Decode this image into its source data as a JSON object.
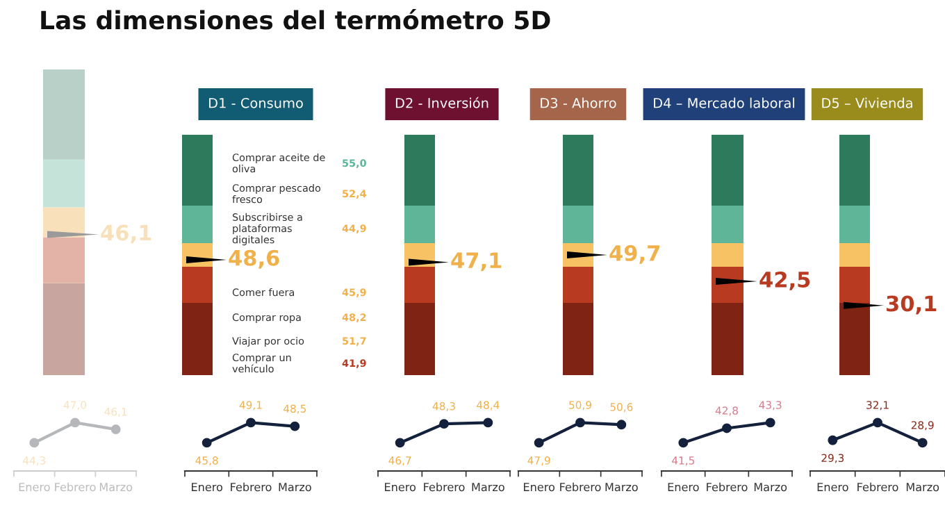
{
  "chart_data": [
    {
      "type": "other",
      "title": "Las dimensiones del termómetro 5D",
      "colors": [
        "#c9a59f",
        "#e3b3a8",
        "#f8e0bb",
        "#c5e3d8",
        "#b9d0c8"
      ],
      "annotations": [
        "46,1"
      ]
    },
    {
      "type": "line",
      "categories": [
        "Enero",
        "Febrero",
        "Marzo"
      ],
      "series": [
        {
          "color": "#b5b7bb",
          "values": [
            44.3,
            47.0,
            46.1
          ],
          "value_labels": [
            "44,3",
            "47,0",
            "46,1"
          ]
        }
      ],
      "marker": "circle"
    },
    {
      "type": "other",
      "title": "D1 - Consumo",
      "color": "#125c73",
      "colors": [
        "#7f2415",
        "#b83a20",
        "#f6c264",
        "#5fb597",
        "#2e7a5d"
      ],
      "annotations": [
        "48,6"
      ]
    },
    {
      "type": "other",
      "colors": [
        "#5fb597",
        "#f0b04a",
        "#f0b04a",
        "#f0b04a",
        "#f0b04a",
        "#f0b04a",
        "#b83a20"
      ],
      "categories": [
        "Comprar aceite de\noliva",
        "Comprar pescado\nfresco",
        "Subscribirse a\nplataformas\ndigitales",
        "Comer fuera",
        "Comprar ropa",
        "Viajar por ocio",
        "Comprar un\nvehículo"
      ],
      "value_labels": [
        "55,0",
        "52,4",
        "44,9",
        "45,9",
        "48,2",
        "51,7",
        "41,9"
      ]
    },
    {
      "type": "line",
      "categories": [
        "Enero",
        "Febrero",
        "Marzo"
      ],
      "series": [
        {
          "color": "#14213d",
          "values": [
            45.8,
            49.1,
            48.5
          ],
          "value_labels": [
            "45,8",
            "49,1",
            "48,5"
          ]
        }
      ],
      "marker": "circle"
    },
    {
      "type": "other",
      "title": "D2 - Inversión",
      "color": "#6e1131",
      "colors": [
        "#7f2415",
        "#b83a20",
        "#f6c264",
        "#5fb597",
        "#2e7a5d"
      ],
      "annotations": [
        "47,1"
      ]
    },
    {
      "type": "line",
      "categories": [
        "Enero",
        "Febrero",
        "Marzo"
      ],
      "series": [
        {
          "color": "#14213d",
          "values": [
            46.7,
            48.3,
            48.4
          ],
          "value_labels": [
            "46,7",
            "48,3",
            "48,4"
          ]
        }
      ],
      "marker": "circle"
    },
    {
      "type": "other",
      "title": "D3 - Ahorro",
      "color": "#a4654a",
      "colors": [
        "#7f2415",
        "#b83a20",
        "#f6c264",
        "#5fb597",
        "#2e7a5d"
      ],
      "annotations": [
        "49,7"
      ]
    },
    {
      "type": "line",
      "categories": [
        "Enero",
        "Febrero",
        "Marzo"
      ],
      "series": [
        {
          "color": "#14213d",
          "values": [
            47.9,
            50.9,
            50.6
          ],
          "value_labels": [
            "47,9",
            "50,9",
            "50,6"
          ]
        }
      ],
      "marker": "circle"
    },
    {
      "type": "other",
      "title": "D4 – Mercado laboral",
      "color": "#20407a",
      "colors": [
        "#7f2415",
        "#b83a20",
        "#f6c264",
        "#5fb597",
        "#2e7a5d"
      ],
      "annotations": [
        "42,5"
      ]
    },
    {
      "type": "line",
      "categories": [
        "Enero",
        "Febrero",
        "Marzo"
      ],
      "series": [
        {
          "color": "#14213d",
          "values": [
            41.5,
            42.8,
            43.3
          ],
          "value_labels": [
            "41,5",
            "42,8",
            "43,3"
          ]
        }
      ],
      "marker": "circle"
    },
    {
      "type": "other",
      "title": "D5 – Vivienda",
      "color": "#9a8c1c",
      "colors": [
        "#7f2415",
        "#b83a20",
        "#f6c264",
        "#5fb597",
        "#2e7a5d"
      ],
      "annotations": [
        "30,1"
      ]
    },
    {
      "type": "line",
      "categories": [
        "Enero",
        "Febrero",
        "Marzo"
      ],
      "series": [
        {
          "color": "#14213d",
          "values": [
            29.3,
            32.1,
            28.9
          ],
          "value_labels": [
            "29,3",
            "32,1",
            "28,9"
          ]
        }
      ],
      "marker": "circle"
    }
  ]
}
